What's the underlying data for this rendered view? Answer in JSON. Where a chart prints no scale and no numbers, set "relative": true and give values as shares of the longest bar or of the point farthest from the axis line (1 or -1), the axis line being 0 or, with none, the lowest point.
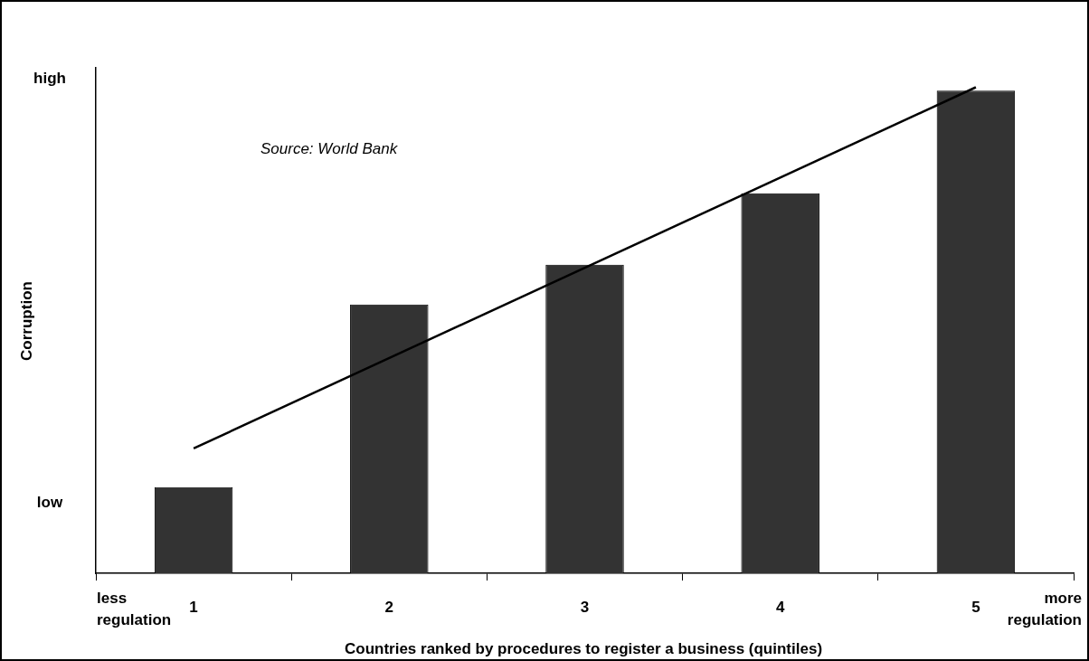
{
  "chart_data": {
    "type": "bar",
    "relative": true,
    "xlabel": "Countries ranked by procedures to register a business (quintiles)",
    "ylabel": "Corruption",
    "categories": [
      "1",
      "2",
      "3",
      "4",
      "5"
    ],
    "series": [
      {
        "color": "#333333",
        "values": [
          0.177,
          0.553,
          0.635,
          0.782,
          0.993
        ]
      },
      {
        "type": "line",
        "color": "#000000",
        "x": [
          "1",
          "5"
        ],
        "values": [
          0.257,
          1
        ],
        "marker": "none",
        "line_style": "solid"
      }
    ],
    "annotations": [
      "high",
      "low",
      "less regulation",
      "more regulation",
      "Source: World Bank"
    ]
  }
}
